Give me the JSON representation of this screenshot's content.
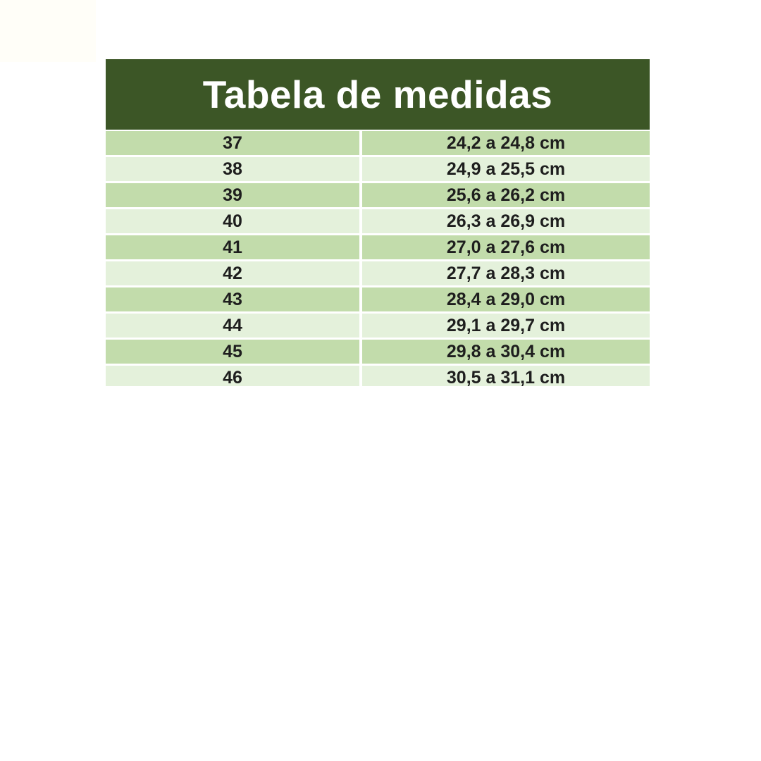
{
  "colors": {
    "page_bg": "#ffffff",
    "header_bg": "#3c5626",
    "title_text": "#ffffff",
    "row_dark": "#c2dcab",
    "row_light": "#e4f1db",
    "row_gap": "#fbfdf6",
    "cell_text": "#1e1e1e"
  },
  "chart_data": {
    "type": "table",
    "title": "Tabela de medidas",
    "rows": [
      [
        "37",
        "24,2 a 24,8 cm"
      ],
      [
        "38",
        "24,9 a 25,5 cm"
      ],
      [
        "39",
        "25,6 a 26,2 cm"
      ],
      [
        "40",
        "26,3 a 26,9 cm"
      ],
      [
        "41",
        "27,0 a 27,6 cm"
      ],
      [
        "42",
        "27,7 a 28,3 cm"
      ],
      [
        "43",
        "28,4 a 29,0 cm"
      ],
      [
        "44",
        "29,1 a 29,7 cm"
      ],
      [
        "45",
        "29,8 a 30,4 cm"
      ],
      [
        "46",
        "30,5 a 31,1 cm"
      ]
    ],
    "layout": {
      "striped": true,
      "first_row_shade": "dark",
      "last_row_clipped": true
    }
  }
}
